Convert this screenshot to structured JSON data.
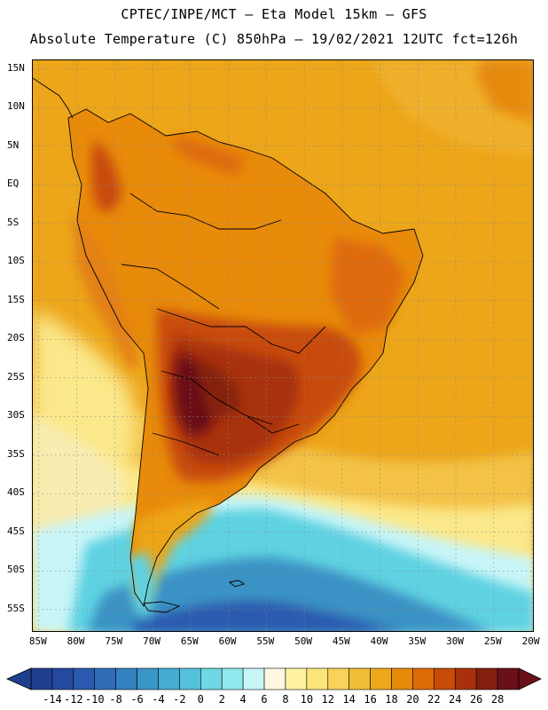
{
  "header": {
    "line1": "CPTEC/INPE/MCT –  Eta Model 15km – GFS",
    "line2": "Absolute Temperature (C) 850hPa – 19/02/2021 12UTC fct=126h"
  },
  "map": {
    "lat_labels": [
      "15N",
      "10N",
      "5N",
      "EQ",
      "5S",
      "10S",
      "15S",
      "20S",
      "25S",
      "30S",
      "35S",
      "40S",
      "45S",
      "50S",
      "55S"
    ],
    "lon_labels": [
      "85W",
      "80W",
      "75W",
      "70W",
      "65W",
      "60W",
      "55W",
      "50W",
      "45W",
      "40W",
      "35W",
      "30W",
      "25W",
      "20W"
    ],
    "lat_values": [
      15,
      10,
      5,
      0,
      -5,
      -10,
      -15,
      -20,
      -25,
      -30,
      -35,
      -40,
      -45,
      -50,
      -55
    ],
    "lon_values": [
      -85,
      -80,
      -75,
      -70,
      -65,
      -60,
      -55,
      -50,
      -45,
      -40,
      -35,
      -30,
      -25,
      -20
    ],
    "lon_range": [
      -85.8,
      -19.6
    ],
    "lat_range": [
      16.1,
      -58
    ]
  },
  "colorbar": {
    "labels": [
      "-14",
      "-12",
      "-10",
      "-8",
      "-6",
      "-4",
      "-2",
      "0",
      "2",
      "4",
      "6",
      "8",
      "10",
      "12",
      "14",
      "16",
      "18",
      "20",
      "22",
      "24",
      "26",
      "28"
    ],
    "colors": [
      "#1f3f8f",
      "#24499f",
      "#2a5aaf",
      "#2f6cb8",
      "#3580c0",
      "#3b96c8",
      "#45acd2",
      "#55c2dc",
      "#6fd8e4",
      "#8ee9ec",
      "#c8f5f8",
      "#fff8e0",
      "#fff2a0",
      "#fde57a",
      "#f8d25a",
      "#f2be38",
      "#eca81a",
      "#e88a0a",
      "#df6a08",
      "#c84c08",
      "#a8300a",
      "#842010",
      "#6a1018"
    ],
    "left_arrow_color": "#1f3f8f",
    "right_arrow_color": "#6a1018"
  },
  "colors": {
    "ocean_warm": "#eda519",
    "ocean_mid": "#f3c246",
    "ocean_cool": "#fbe88a",
    "ocean_cold": "#c8f5f8",
    "cyan": "#5fd2e2",
    "blue": "#3a92c4",
    "land_warm": "#e88a0a",
    "land_hot": "#c84c08",
    "land_hotter": "#a8300a",
    "land_hottest": "#6a1018"
  }
}
